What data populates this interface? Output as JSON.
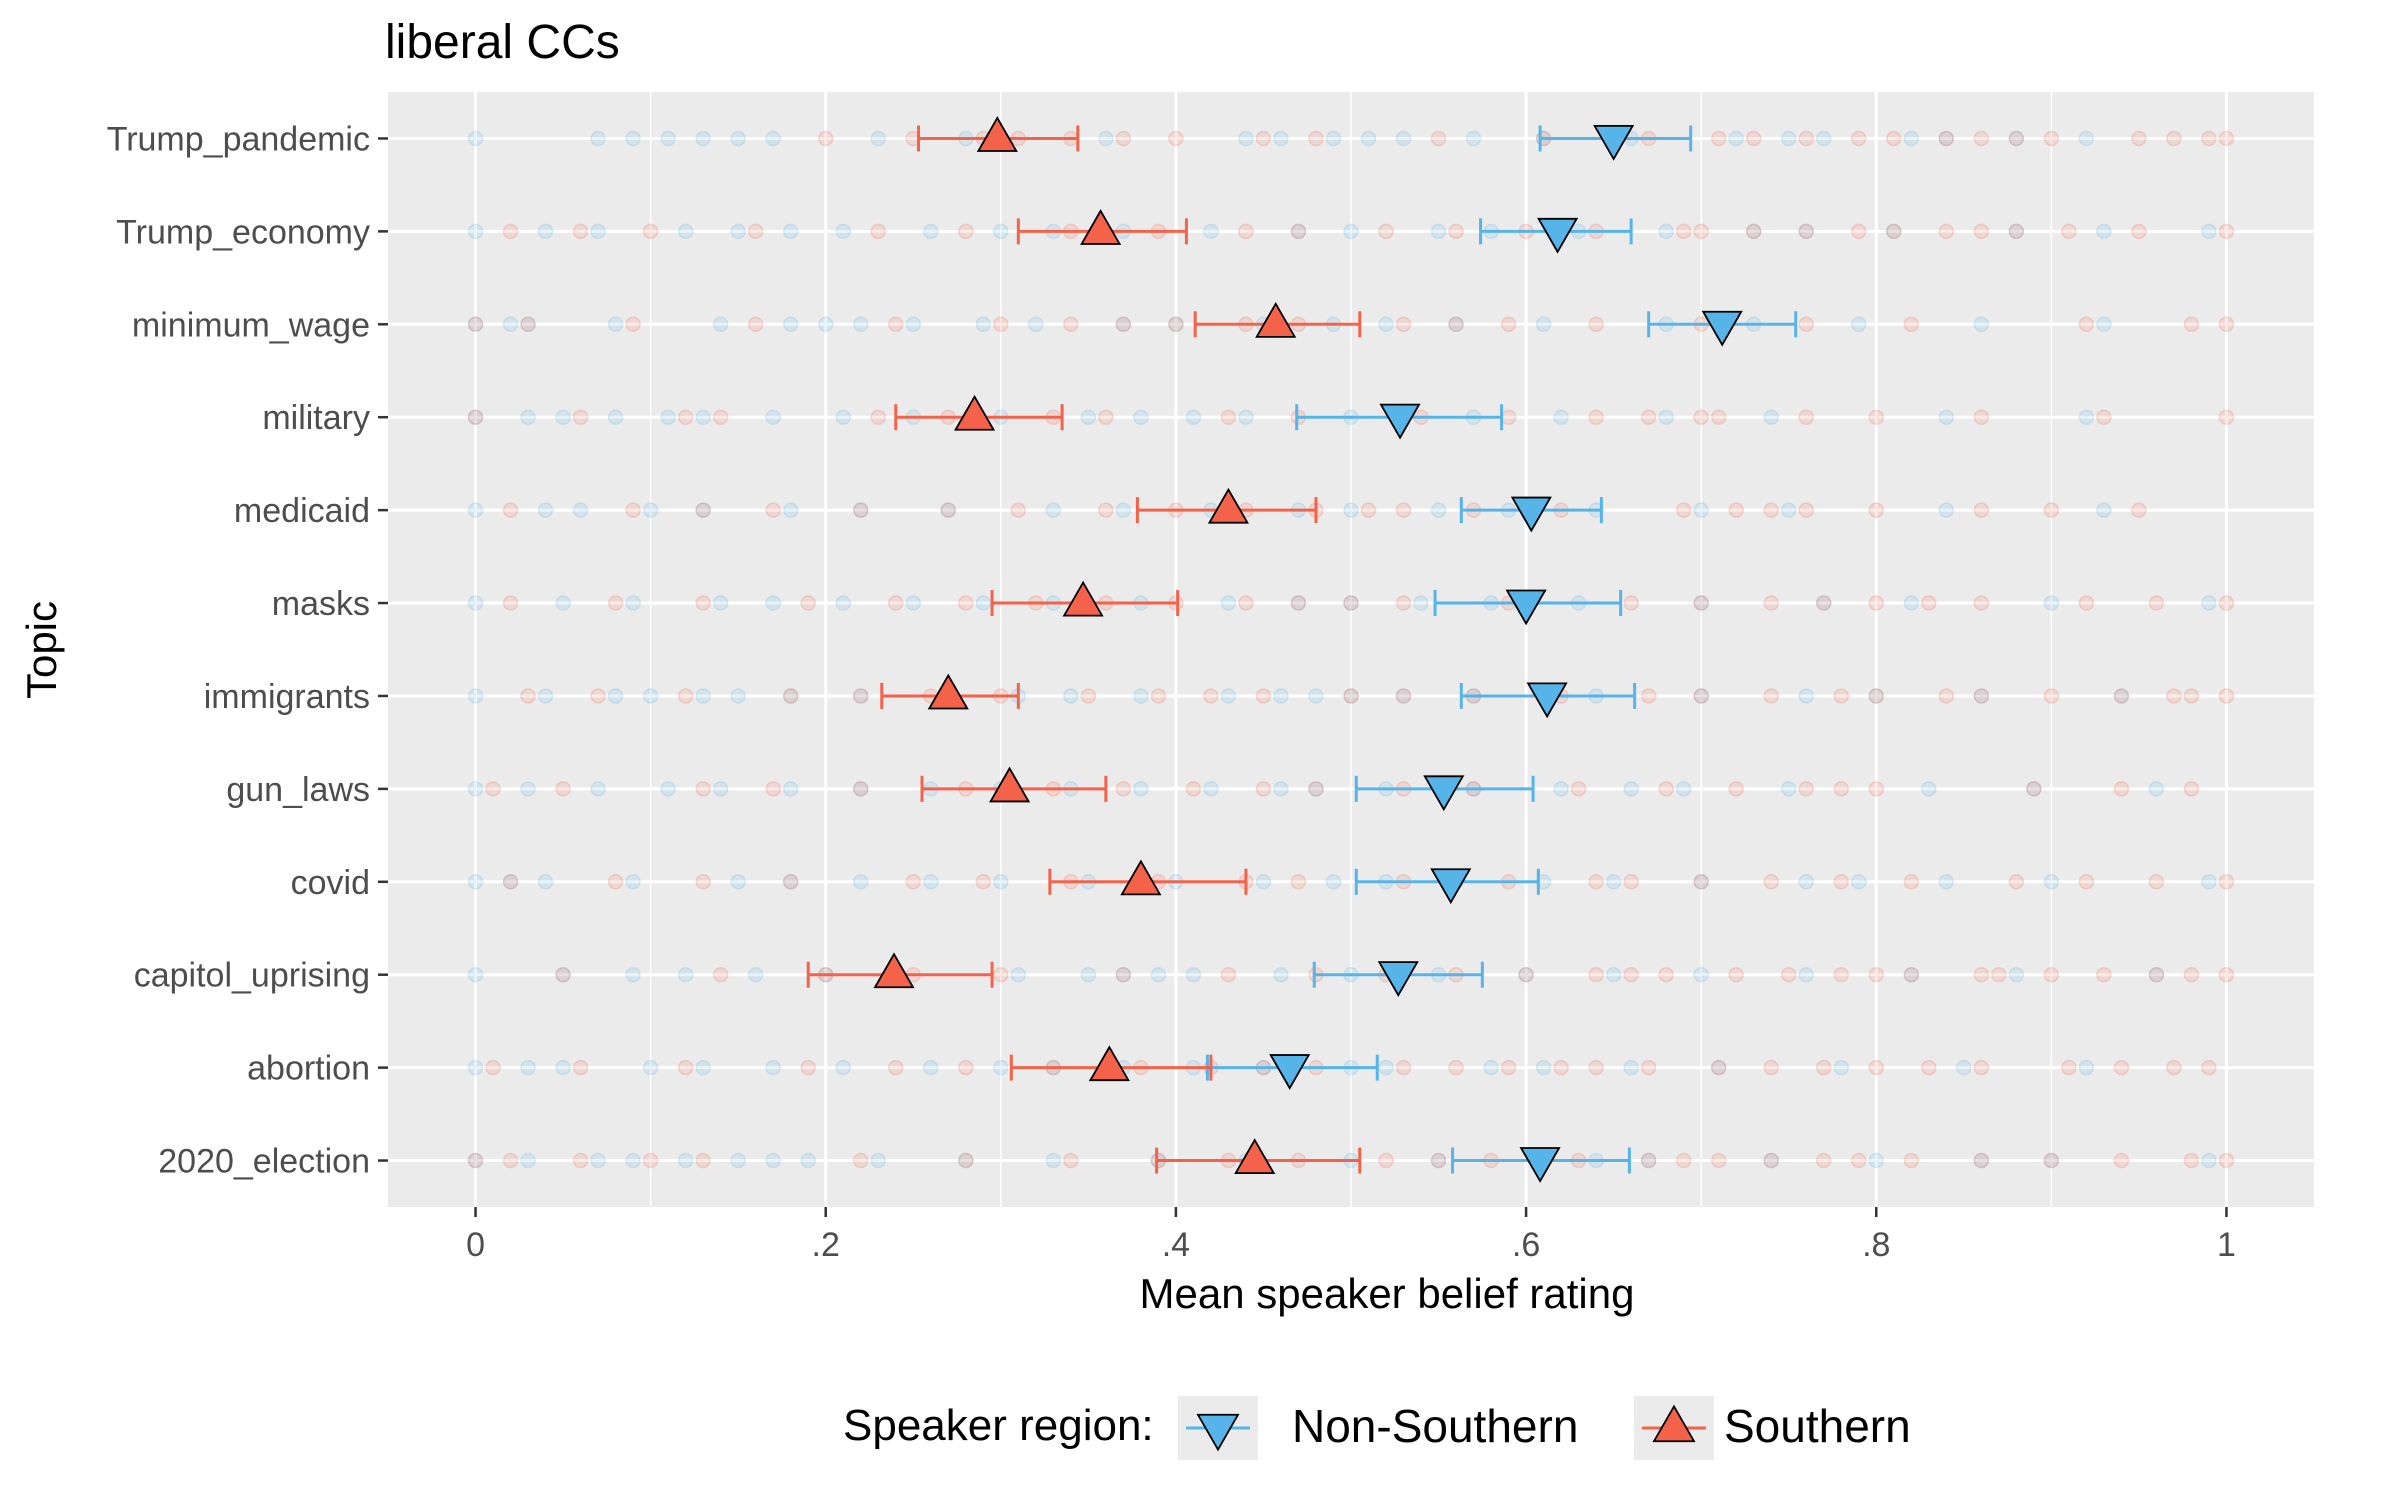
{
  "chart_data": {
    "type": "scatter",
    "title": "liberal CCs",
    "xlabel": "Mean speaker belief rating",
    "ylabel": "Topic",
    "xlim": [
      -0.05,
      1.05
    ],
    "x_ticks": [
      0,
      0.2,
      0.4,
      0.6,
      0.8,
      1.0
    ],
    "x_tick_labels": [
      "0",
      ".2",
      ".4",
      ".6",
      ".8",
      "1"
    ],
    "grid": true,
    "legend_position": "bottom",
    "legend_title": "Speaker region:",
    "categories": [
      "Trump_pandemic",
      "Trump_economy",
      "minimum_wage",
      "military",
      "medicaid",
      "masks",
      "immigrants",
      "gun_laws",
      "covid",
      "capitol_uprising",
      "abortion",
      "2020_election"
    ],
    "series": [
      {
        "name": "Non-Southern",
        "marker": "triangle-down",
        "color": "#56B4E9",
        "means": [
          0.65,
          0.618,
          0.712,
          0.528,
          0.603,
          0.6,
          0.612,
          0.553,
          0.557,
          0.527,
          0.465,
          0.608
        ],
        "ci_low": [
          0.608,
          0.574,
          0.67,
          0.469,
          0.563,
          0.548,
          0.563,
          0.503,
          0.503,
          0.479,
          0.418,
          0.558
        ],
        "ci_high": [
          0.694,
          0.66,
          0.754,
          0.586,
          0.643,
          0.654,
          0.662,
          0.604,
          0.607,
          0.575,
          0.515,
          0.659
        ]
      },
      {
        "name": "Southern",
        "marker": "triangle-up",
        "color": "#F4624A",
        "means": [
          0.298,
          0.357,
          0.457,
          0.285,
          0.43,
          0.347,
          0.27,
          0.305,
          0.38,
          0.239,
          0.362,
          0.445
        ],
        "ci_low": [
          0.253,
          0.31,
          0.411,
          0.24,
          0.378,
          0.295,
          0.232,
          0.255,
          0.328,
          0.19,
          0.306,
          0.389
        ],
        "ci_high": [
          0.344,
          0.406,
          0.505,
          0.335,
          0.48,
          0.401,
          0.31,
          0.36,
          0.44,
          0.295,
          0.42,
          0.505
        ]
      }
    ],
    "raw_points_blue": [
      [
        0,
        0.07,
        0.09,
        0.11,
        0.13,
        0.15,
        0.17,
        0.23,
        0.28,
        0.36,
        0.44,
        0.46,
        0.49,
        0.51,
        0.53,
        0.57,
        0.61,
        0.66,
        0.72,
        0.75,
        0.77,
        0.82,
        0.84,
        0.88,
        0.92
      ],
      [
        0,
        0.04,
        0.07,
        0.12,
        0.15,
        0.18,
        0.21,
        0.26,
        0.3,
        0.33,
        0.37,
        0.42,
        0.47,
        0.5,
        0.55,
        0.58,
        0.63,
        0.68,
        0.73,
        0.76,
        0.81,
        0.88,
        0.93,
        0.99
      ],
      [
        0,
        0.02,
        0.03,
        0.08,
        0.14,
        0.18,
        0.2,
        0.22,
        0.25,
        0.29,
        0.32,
        0.37,
        0.4,
        0.45,
        0.49,
        0.52,
        0.56,
        0.61,
        0.68,
        0.73,
        0.79,
        0.86,
        0.93
      ],
      [
        0,
        0.03,
        0.05,
        0.08,
        0.11,
        0.13,
        0.17,
        0.21,
        0.25,
        0.3,
        0.35,
        0.38,
        0.41,
        0.44,
        0.5,
        0.53,
        0.57,
        0.62,
        0.68,
        0.74,
        0.84,
        0.92
      ],
      [
        0,
        0.04,
        0.06,
        0.1,
        0.13,
        0.18,
        0.22,
        0.27,
        0.33,
        0.37,
        0.42,
        0.47,
        0.5,
        0.55,
        0.59,
        0.64,
        0.7,
        0.75,
        0.84,
        0.93
      ],
      [
        0,
        0.05,
        0.09,
        0.14,
        0.17,
        0.21,
        0.25,
        0.29,
        0.33,
        0.38,
        0.43,
        0.47,
        0.5,
        0.54,
        0.58,
        0.63,
        0.7,
        0.77,
        0.82,
        0.9,
        0.99
      ],
      [
        0,
        0.04,
        0.08,
        0.1,
        0.13,
        0.15,
        0.18,
        0.22,
        0.27,
        0.31,
        0.34,
        0.38,
        0.43,
        0.46,
        0.48,
        0.5,
        0.53,
        0.57,
        0.61,
        0.64,
        0.7,
        0.76,
        0.8,
        0.86,
        0.94
      ],
      [
        0,
        0.03,
        0.07,
        0.11,
        0.14,
        0.18,
        0.22,
        0.26,
        0.3,
        0.34,
        0.38,
        0.42,
        0.46,
        0.48,
        0.52,
        0.57,
        0.62,
        0.66,
        0.69,
        0.75,
        0.83,
        0.89,
        0.96
      ],
      [
        0,
        0.02,
        0.04,
        0.09,
        0.15,
        0.18,
        0.22,
        0.26,
        0.3,
        0.35,
        0.4,
        0.45,
        0.49,
        0.52,
        0.56,
        0.61,
        0.65,
        0.7,
        0.76,
        0.79,
        0.84,
        0.9,
        0.99
      ],
      [
        0,
        0.05,
        0.09,
        0.12,
        0.16,
        0.2,
        0.24,
        0.31,
        0.35,
        0.37,
        0.39,
        0.41,
        0.46,
        0.5,
        0.55,
        0.6,
        0.65,
        0.7,
        0.76,
        0.82,
        0.88,
        0.96
      ],
      [
        0,
        0.03,
        0.05,
        0.1,
        0.13,
        0.17,
        0.21,
        0.26,
        0.3,
        0.33,
        0.37,
        0.41,
        0.45,
        0.5,
        0.52,
        0.58,
        0.61,
        0.66,
        0.71,
        0.78,
        0.85,
        0.92
      ],
      [
        0,
        0.03,
        0.07,
        0.09,
        0.12,
        0.15,
        0.17,
        0.19,
        0.23,
        0.28,
        0.33,
        0.39,
        0.44,
        0.5,
        0.55,
        0.61,
        0.64,
        0.67,
        0.74,
        0.8,
        0.86,
        0.9,
        0.99
      ]
    ],
    "raw_points_red": [
      [
        0.2,
        0.25,
        0.29,
        0.31,
        0.34,
        0.37,
        0.4,
        0.45,
        0.48,
        0.55,
        0.61,
        0.67,
        0.71,
        0.73,
        0.76,
        0.79,
        0.81,
        0.84,
        0.86,
        0.88,
        0.9,
        0.95,
        0.97,
        0.99,
        1.0
      ],
      [
        0.02,
        0.06,
        0.1,
        0.16,
        0.23,
        0.28,
        0.34,
        0.39,
        0.44,
        0.47,
        0.52,
        0.56,
        0.6,
        0.64,
        0.69,
        0.7,
        0.73,
        0.76,
        0.79,
        0.81,
        0.84,
        0.86,
        0.88,
        0.91,
        0.95,
        1.0
      ],
      [
        0,
        0.03,
        0.09,
        0.16,
        0.24,
        0.3,
        0.34,
        0.37,
        0.4,
        0.44,
        0.47,
        0.53,
        0.56,
        0.59,
        0.64,
        0.7,
        0.76,
        0.82,
        0.92,
        0.98,
        1.0
      ],
      [
        0,
        0.06,
        0.12,
        0.14,
        0.23,
        0.27,
        0.33,
        0.36,
        0.43,
        0.47,
        0.54,
        0.59,
        0.64,
        0.67,
        0.7,
        0.71,
        0.76,
        0.8,
        0.86,
        0.93,
        1.0
      ],
      [
        0.02,
        0.09,
        0.13,
        0.17,
        0.22,
        0.27,
        0.31,
        0.36,
        0.4,
        0.44,
        0.48,
        0.51,
        0.53,
        0.57,
        0.62,
        0.69,
        0.72,
        0.74,
        0.76,
        0.8,
        0.86,
        0.9,
        0.95
      ],
      [
        0.02,
        0.08,
        0.13,
        0.19,
        0.24,
        0.28,
        0.32,
        0.36,
        0.4,
        0.44,
        0.47,
        0.5,
        0.53,
        0.59,
        0.66,
        0.7,
        0.74,
        0.77,
        0.8,
        0.83,
        0.86,
        0.92,
        0.96,
        1.0
      ],
      [
        0.03,
        0.07,
        0.12,
        0.18,
        0.22,
        0.26,
        0.3,
        0.35,
        0.39,
        0.42,
        0.45,
        0.5,
        0.53,
        0.57,
        0.62,
        0.67,
        0.7,
        0.74,
        0.78,
        0.8,
        0.84,
        0.86,
        0.9,
        0.94,
        0.97,
        0.98,
        1.0
      ],
      [
        0.01,
        0.05,
        0.13,
        0.17,
        0.22,
        0.28,
        0.33,
        0.37,
        0.41,
        0.45,
        0.48,
        0.53,
        0.57,
        0.63,
        0.68,
        0.72,
        0.76,
        0.78,
        0.8,
        0.89,
        0.94,
        0.98
      ],
      [
        0.02,
        0.08,
        0.13,
        0.18,
        0.25,
        0.29,
        0.34,
        0.39,
        0.44,
        0.47,
        0.53,
        0.59,
        0.64,
        0.66,
        0.7,
        0.74,
        0.78,
        0.82,
        0.88,
        0.92,
        0.96,
        1.0
      ],
      [
        0.05,
        0.14,
        0.2,
        0.25,
        0.3,
        0.37,
        0.43,
        0.48,
        0.52,
        0.56,
        0.6,
        0.64,
        0.66,
        0.68,
        0.72,
        0.75,
        0.78,
        0.8,
        0.82,
        0.86,
        0.87,
        0.9,
        0.93,
        0.96,
        0.98,
        1.0
      ],
      [
        0.01,
        0.06,
        0.12,
        0.19,
        0.24,
        0.28,
        0.33,
        0.38,
        0.42,
        0.45,
        0.48,
        0.53,
        0.56,
        0.59,
        0.62,
        0.64,
        0.67,
        0.71,
        0.74,
        0.77,
        0.8,
        0.83,
        0.86,
        0.91,
        0.94,
        0.97,
        0.99
      ],
      [
        0,
        0.02,
        0.06,
        0.1,
        0.13,
        0.22,
        0.28,
        0.34,
        0.39,
        0.43,
        0.47,
        0.52,
        0.55,
        0.58,
        0.63,
        0.67,
        0.69,
        0.71,
        0.74,
        0.77,
        0.79,
        0.82,
        0.86,
        0.9,
        0.94,
        0.98,
        1.0
      ]
    ]
  }
}
